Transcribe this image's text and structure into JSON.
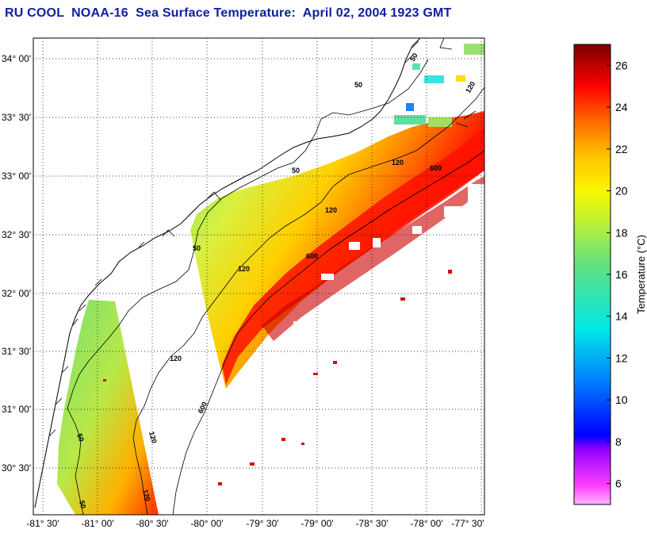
{
  "header": {
    "title": "RU COOL  NOAA-16  Sea Surface Temperature:  April 02, 2004 1923 GMT"
  },
  "map": {
    "lat_labels": [
      "34° 00'",
      "33° 30'",
      "33° 00'",
      "32° 30'",
      "32° 00'",
      "31° 30'",
      "31° 00'",
      "30° 30'"
    ],
    "lon_labels": [
      "-81° 30'",
      "-81° 00'",
      "-80° 30'",
      "-80° 00'",
      "-79° 30'",
      "-79° 00'",
      "-78° 30'",
      "-78° 00'",
      "-77° 30'"
    ],
    "isobath_labels": {
      "c50": "50",
      "c120": "120",
      "c600": "600"
    }
  },
  "colorbar": {
    "title": "Temperature (°C)",
    "ticks": [
      "26",
      "24",
      "22",
      "20",
      "18",
      "16",
      "14",
      "12",
      "10",
      "8",
      "6"
    ],
    "min": 5,
    "max": 27,
    "colors": {
      "warmest": "#8b0000",
      "red": "#ff1a00",
      "orange": "#ff8c00",
      "yellow": "#f0f000",
      "green": "#80e060",
      "cyan": "#00e0e0",
      "blue": "#0000ff",
      "magenta": "#ff40ff"
    }
  }
}
